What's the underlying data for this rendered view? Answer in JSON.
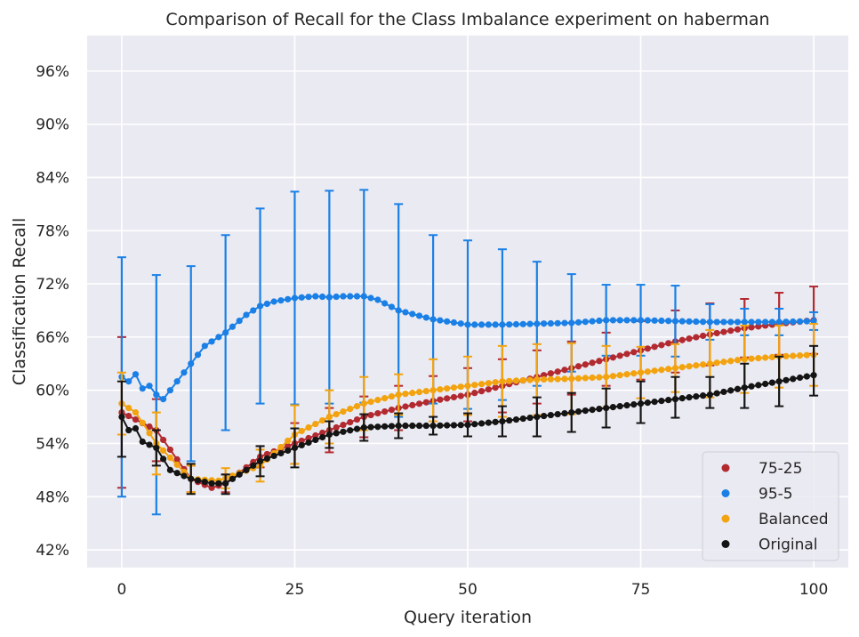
{
  "chart_data": {
    "type": "line",
    "title": "Comparison of Recall for the Class Imbalance experiment on haberman",
    "xlabel": "Query iteration",
    "ylabel": "Classification Recall",
    "xlim": [
      -5,
      105
    ],
    "ylim": [
      40,
      100
    ],
    "x_ticks": [
      0,
      25,
      50,
      75,
      100
    ],
    "x_tick_labels": [
      "0",
      "25",
      "50",
      "75",
      "100"
    ],
    "y_ticks": [
      42,
      48,
      54,
      60,
      66,
      72,
      78,
      84,
      90,
      96
    ],
    "y_tick_labels": [
      "42%",
      "48%",
      "54%",
      "60%",
      "66%",
      "72%",
      "78%",
      "84%",
      "90%",
      "96%"
    ],
    "grid": true,
    "legend_position": "lower-right",
    "error_bar_every": 5,
    "series": [
      {
        "name": "75-25",
        "color": "#b22a30",
        "x_anchor": [
          0,
          5,
          10,
          13,
          15,
          20,
          25,
          30,
          35,
          40,
          45,
          50,
          55,
          60,
          65,
          70,
          75,
          80,
          85,
          90,
          95,
          100
        ],
        "y_anchor": [
          57.5,
          55.5,
          50.0,
          49.0,
          49.5,
          52.5,
          54.0,
          55.5,
          57.0,
          58.0,
          58.8,
          59.5,
          60.5,
          61.5,
          62.5,
          63.5,
          64.5,
          65.5,
          66.3,
          67.0,
          67.5,
          67.9
        ],
        "err": [
          8.5,
          3.5,
          1.5,
          1.0,
          1.0,
          1.2,
          2.3,
          2.5,
          2.3,
          2.5,
          2.8,
          3.0,
          3.0,
          3.0,
          3.0,
          3.0,
          3.3,
          3.5,
          3.5,
          3.3,
          3.5,
          3.8
        ]
      },
      {
        "name": "95-5",
        "color": "#1a80e6",
        "x_anchor": [
          0,
          1,
          2,
          3,
          4,
          5,
          6,
          7,
          8,
          10,
          12,
          15,
          18,
          20,
          22,
          25,
          28,
          30,
          32,
          35,
          37,
          40,
          45,
          50,
          55,
          60,
          65,
          70,
          75,
          80,
          85,
          90,
          95,
          100
        ],
        "y_anchor": [
          61.5,
          61.0,
          61.8,
          60.2,
          60.5,
          59.5,
          59.0,
          60.0,
          61.0,
          63.0,
          65.0,
          66.5,
          68.5,
          69.5,
          70.0,
          70.4,
          70.6,
          70.5,
          70.6,
          70.6,
          70.2,
          69.0,
          68.0,
          67.4,
          67.4,
          67.5,
          67.6,
          67.9,
          67.9,
          67.8,
          67.7,
          67.7,
          67.7,
          67.8
        ],
        "err": [
          13.5,
          13.5,
          13.5,
          13.5,
          13.5,
          13.5,
          13.5,
          13.5,
          13.5,
          11.0,
          11.0,
          11.0,
          11.0,
          11.0,
          12.0,
          12.0,
          12.0,
          12.0,
          12.0,
          12.0,
          12.0,
          12.0,
          9.5,
          9.5,
          8.5,
          7.0,
          5.5,
          4.0,
          4.0,
          4.0,
          2.0,
          1.5,
          1.5,
          1.0
        ]
      },
      {
        "name": "Balanced",
        "color": "#f2a30f",
        "x_anchor": [
          0,
          2,
          5,
          10,
          14,
          20,
          25,
          30,
          35,
          40,
          45,
          50,
          55,
          60,
          65,
          70,
          75,
          80,
          85,
          90,
          95,
          100
        ],
        "y_anchor": [
          58.5,
          57.5,
          54.0,
          50.0,
          49.8,
          51.5,
          55.0,
          57.0,
          58.5,
          59.5,
          60.0,
          60.5,
          61.0,
          61.2,
          61.3,
          61.5,
          62.0,
          62.5,
          63.0,
          63.5,
          63.8,
          64.0
        ],
        "err": [
          3.5,
          3.5,
          3.5,
          1.5,
          1.0,
          1.8,
          3.3,
          3.0,
          3.0,
          2.3,
          3.5,
          3.3,
          4.0,
          4.0,
          4.0,
          3.5,
          2.9,
          2.7,
          3.8,
          3.8,
          3.5,
          3.5
        ]
      },
      {
        "name": "Original",
        "color": "#141414",
        "x_anchor": [
          0,
          1,
          2,
          3,
          5,
          7,
          10,
          13,
          15,
          20,
          25,
          30,
          35,
          40,
          45,
          50,
          55,
          60,
          65,
          70,
          75,
          80,
          85,
          90,
          95,
          100
        ],
        "y_anchor": [
          57.0,
          55.5,
          55.7,
          54.2,
          53.5,
          51.0,
          50.0,
          49.5,
          49.5,
          52.0,
          53.5,
          55.0,
          55.8,
          56.0,
          56.0,
          56.1,
          56.5,
          57.0,
          57.5,
          58.0,
          58.5,
          59.0,
          59.5,
          60.3,
          61.0,
          61.7
        ]
      }
    ],
    "original_err_points": [
      {
        "x": 0,
        "low": 52.5,
        "high": 61.0
      },
      {
        "x": 5,
        "low": 51.5,
        "high": 55.5
      },
      {
        "x": 10,
        "low": 48.3,
        "high": 51.7
      },
      {
        "x": 15,
        "low": 48.3,
        "high": 50.5
      },
      {
        "x": 20,
        "low": 50.3,
        "high": 53.7
      },
      {
        "x": 25,
        "low": 51.3,
        "high": 55.7
      },
      {
        "x": 30,
        "low": 53.5,
        "high": 56.5
      },
      {
        "x": 35,
        "low": 54.3,
        "high": 57.3
      },
      {
        "x": 40,
        "low": 54.6,
        "high": 57.4
      },
      {
        "x": 45,
        "low": 55.0,
        "high": 57.0
      },
      {
        "x": 50,
        "low": 54.8,
        "high": 57.4
      },
      {
        "x": 55,
        "low": 54.8,
        "high": 58.2
      },
      {
        "x": 60,
        "low": 54.8,
        "high": 59.2
      },
      {
        "x": 65,
        "low": 55.3,
        "high": 59.7
      },
      {
        "x": 70,
        "low": 55.8,
        "high": 60.2
      },
      {
        "x": 75,
        "low": 56.3,
        "high": 61.0
      },
      {
        "x": 80,
        "low": 56.9,
        "high": 61.5
      },
      {
        "x": 85,
        "low": 58.0,
        "high": 61.5
      },
      {
        "x": 90,
        "low": 58.0,
        "high": 63.0
      },
      {
        "x": 95,
        "low": 58.2,
        "high": 63.8
      },
      {
        "x": 100,
        "low": 59.4,
        "high": 65.0
      }
    ]
  }
}
